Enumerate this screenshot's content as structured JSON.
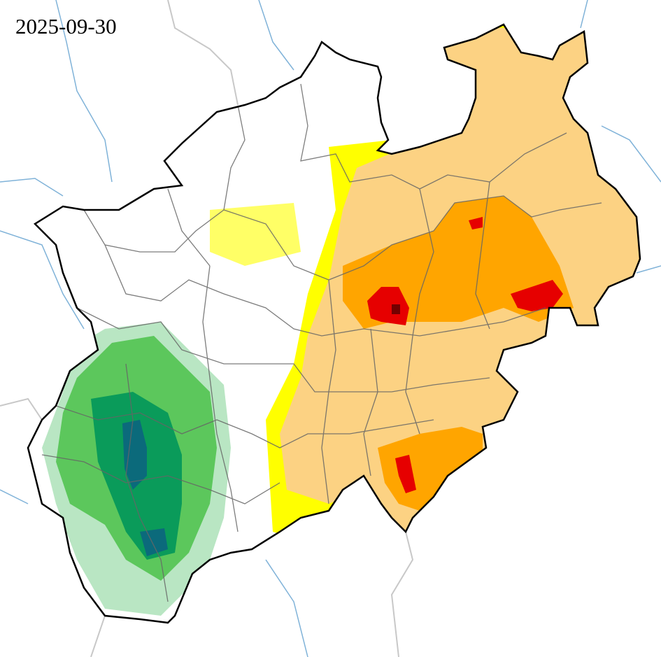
{
  "map": {
    "date_label": "2025-09-30",
    "colors": {
      "class_yellow": "#ffff00",
      "class_light_orange": "#fcd283",
      "class_orange": "#ffa500",
      "class_red": "#e60000",
      "class_dark_red": "#730000",
      "class_light_green": "#b9e6c3",
      "class_green": "#5cc75c",
      "class_dark_green": "#0a9b5a",
      "class_teal": "#0b6a7b",
      "state_border": "#000000",
      "district_border": "#666666",
      "rivers": "#7fb2d8",
      "neighbour_borders": "#c0c0c0"
    }
  }
}
